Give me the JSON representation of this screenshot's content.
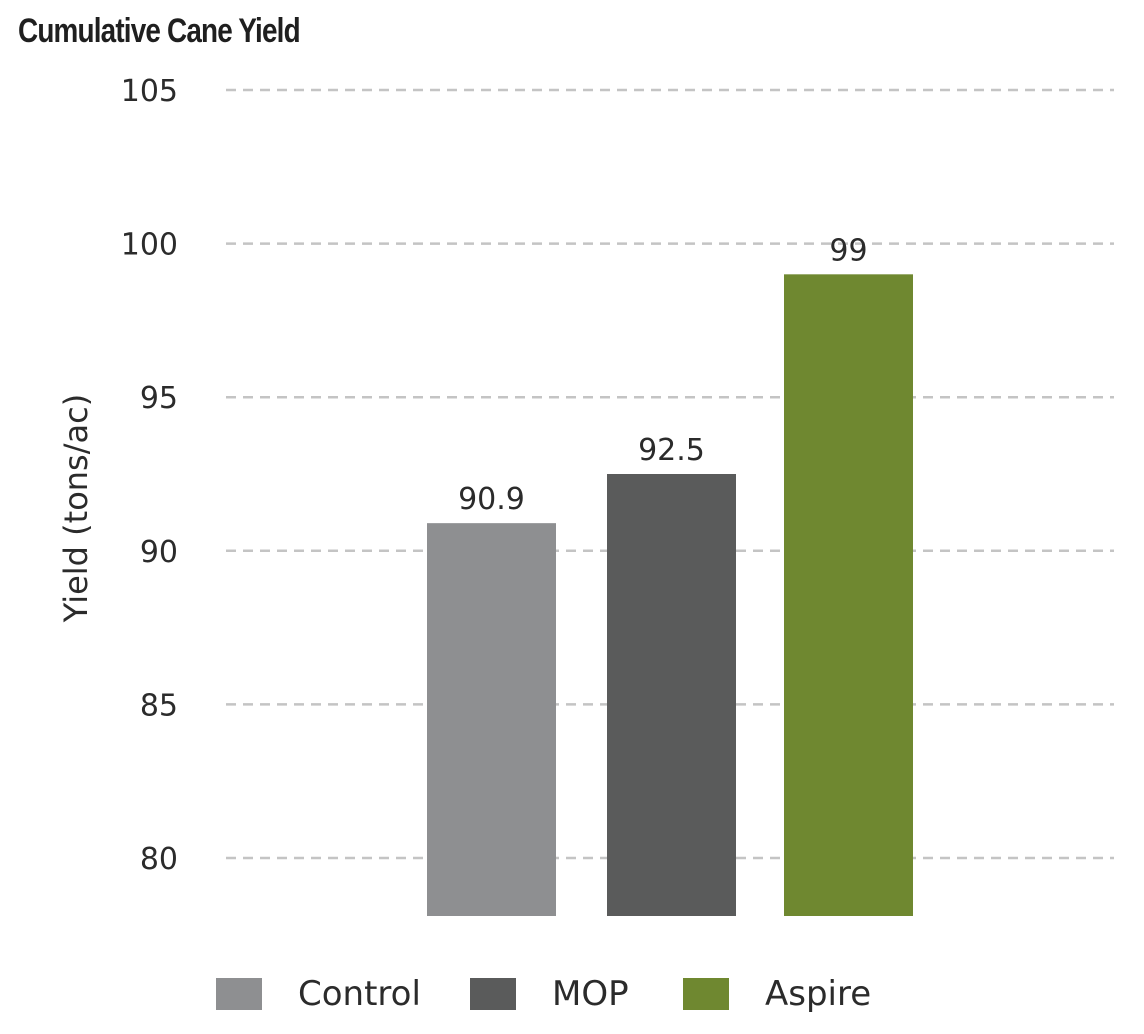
{
  "chart_data": {
    "type": "bar",
    "title": "Cumulative Cane Yield",
    "xlabel": "",
    "ylabel": "Yield (tons/ac)",
    "ylim": [
      78,
      105
    ],
    "yticks": [
      80,
      85,
      90,
      95,
      100,
      105
    ],
    "grid": true,
    "legend_position": "bottom",
    "categories": [
      "Control",
      "MOP",
      "Aspire"
    ],
    "values": [
      90.9,
      92.5,
      99
    ],
    "value_labels": [
      "90.9",
      "92.5",
      "99"
    ],
    "colors": [
      "#8e8f91",
      "#5a5b5b",
      "#6f8830"
    ]
  }
}
